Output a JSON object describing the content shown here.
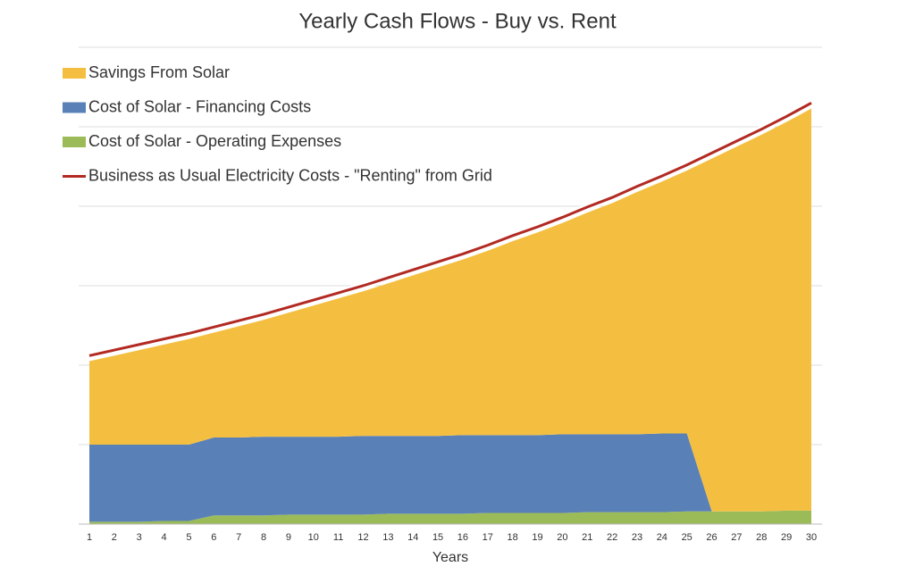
{
  "chart_data": {
    "type": "stacked_area_line",
    "title": "Yearly Cash Flows - Buy vs. Rent",
    "xlabel": "Years",
    "categories": [
      "1",
      "2",
      "3",
      "4",
      "5",
      "6",
      "7",
      "8",
      "9",
      "10",
      "11",
      "12",
      "13",
      "14",
      "15",
      "16",
      "17",
      "18",
      "19",
      "20",
      "21",
      "22",
      "23",
      "24",
      "25",
      "26",
      "27",
      "28",
      "29",
      "30"
    ],
    "ylim": [
      0,
      6
    ],
    "ygrid": [
      0,
      1,
      2,
      3,
      4,
      5,
      6
    ],
    "grid": true,
    "legend": "top-left",
    "series": [
      {
        "name": "Cost of Solar - Operating Expenses",
        "kind": "area",
        "color": "#9bbb59",
        "values": [
          0.03,
          0.03,
          0.03,
          0.04,
          0.04,
          0.11,
          0.11,
          0.11,
          0.12,
          0.12,
          0.12,
          0.12,
          0.13,
          0.13,
          0.13,
          0.13,
          0.14,
          0.14,
          0.14,
          0.14,
          0.15,
          0.15,
          0.15,
          0.15,
          0.16,
          0.16,
          0.16,
          0.16,
          0.17,
          0.17
        ]
      },
      {
        "name": "Cost of Solar - Financing Costs",
        "kind": "area",
        "color": "#5a80b8",
        "values": [
          0.97,
          0.97,
          0.97,
          0.96,
          0.96,
          0.98,
          0.98,
          0.99,
          0.98,
          0.98,
          0.98,
          0.99,
          0.98,
          0.98,
          0.98,
          0.99,
          0.98,
          0.98,
          0.98,
          0.99,
          0.98,
          0.98,
          0.98,
          0.99,
          0.98,
          0,
          0,
          0,
          0,
          0
        ]
      },
      {
        "name": "Savings From Solar",
        "kind": "area",
        "color": "#f4bf40",
        "values": [
          1.05,
          1.12,
          1.19,
          1.26,
          1.33,
          1.32,
          1.4,
          1.47,
          1.56,
          1.65,
          1.74,
          1.82,
          1.92,
          2.02,
          2.12,
          2.21,
          2.32,
          2.44,
          2.55,
          2.66,
          2.79,
          2.91,
          3.05,
          3.17,
          3.31,
          4.44,
          4.59,
          4.74,
          4.89,
          5.06
        ]
      },
      {
        "name": "Business as Usual Electricity Costs - \"Renting\" from Grid",
        "kind": "line",
        "color": "#b22a22",
        "values": [
          2.12,
          2.19,
          2.26,
          2.33,
          2.4,
          2.48,
          2.56,
          2.64,
          2.73,
          2.82,
          2.91,
          3.0,
          3.1,
          3.2,
          3.3,
          3.4,
          3.51,
          3.63,
          3.74,
          3.86,
          3.99,
          4.11,
          4.25,
          4.38,
          4.52,
          4.67,
          4.82,
          4.97,
          5.13,
          5.3
        ]
      }
    ],
    "legend_order": [
      2,
      1,
      0,
      3
    ]
  }
}
